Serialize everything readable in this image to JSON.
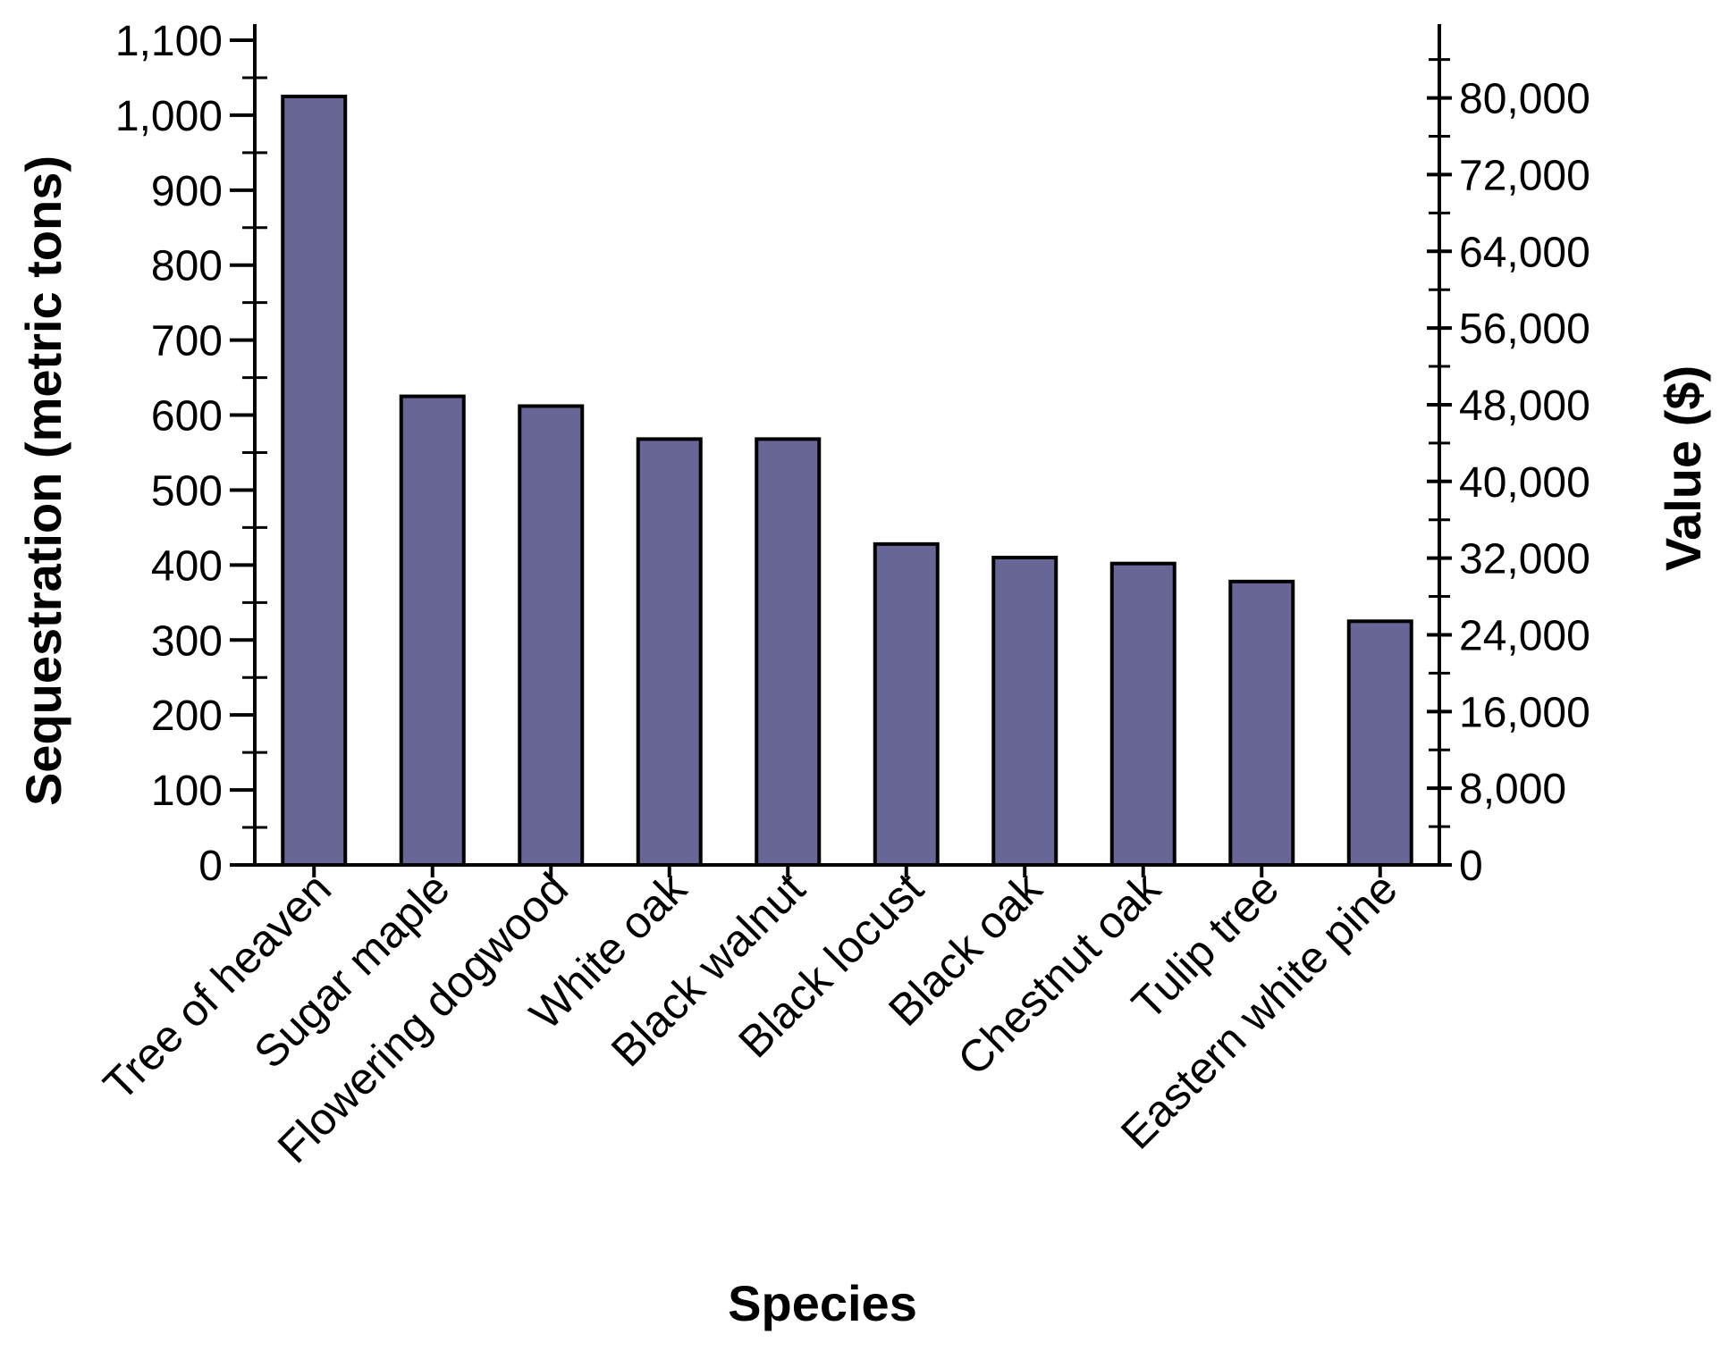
{
  "chart_data": {
    "type": "bar",
    "title": "",
    "xlabel": "Species",
    "ylabel": "Sequestration (metric tons)",
    "y2label": "Value ($)",
    "categories": [
      "Tree of heaven",
      "Sugar maple",
      "Flowering dogwood",
      "White oak",
      "Black walnut",
      "Black locust",
      "Black oak",
      "Chestnut oak",
      "Tulip tree",
      "Eastern white pine"
    ],
    "series": [
      {
        "values": [
          1025,
          625,
          612,
          568,
          568,
          428,
          410,
          402,
          378,
          325
        ]
      }
    ],
    "ylim": [
      0,
      1100
    ],
    "yticks": [
      0,
      100,
      200,
      300,
      400,
      500,
      600,
      700,
      800,
      900,
      1000,
      1100
    ],
    "ytick_labels": [
      "0",
      "100",
      "200",
      "300",
      "400",
      "500",
      "600",
      "700",
      "800",
      "900",
      "1,000",
      "1,100"
    ],
    "y2ticks": [
      0,
      8000,
      16000,
      24000,
      32000,
      40000,
      48000,
      56000,
      64000,
      72000,
      80000
    ],
    "y2tick_labels": [
      "0",
      "8,000",
      "16,000",
      "24,000",
      "32,000",
      "40,000",
      "48,000",
      "56,000",
      "64,000",
      "72,000",
      "80,000"
    ],
    "y2_value_per_ton": 78.2,
    "grid": false,
    "legend": "none",
    "colors": {
      "bar_fill": "#676696",
      "bar_stroke": "#000000",
      "axis": "#000000"
    }
  }
}
